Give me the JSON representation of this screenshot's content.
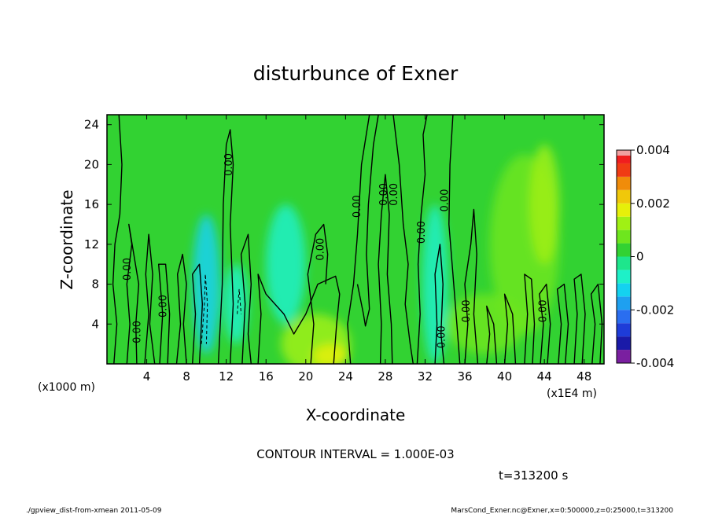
{
  "chart_data": {
    "type": "heatmap",
    "title": "disturbunce of Exner",
    "xlabel": "X-coordinate",
    "ylabel": "Z-coordinate",
    "x_unit_label": "(x1E4 m)",
    "y_unit_label": "(x1000 m)",
    "xlim": [
      0,
      50
    ],
    "ylim": [
      0,
      25
    ],
    "x_ticks": [
      4,
      8,
      12,
      16,
      20,
      24,
      28,
      32,
      36,
      40,
      44,
      48
    ],
    "y_ticks": [
      4,
      8,
      12,
      16,
      20,
      24
    ],
    "colorbar": {
      "range": [
        -0.004,
        0.004
      ],
      "tick_labels": [
        "0.004",
        "0.002",
        "0",
        "-0.002",
        "-0.004"
      ],
      "tick_values": [
        0.004,
        0.002,
        0,
        -0.002,
        -0.004
      ],
      "levels": [
        {
          "lo": -0.004,
          "hi": -0.0035,
          "color": "#7a1fa0"
        },
        {
          "lo": -0.0035,
          "hi": -0.003,
          "color": "#1a1aa8"
        },
        {
          "lo": -0.003,
          "hi": -0.0025,
          "color": "#1e3cd8"
        },
        {
          "lo": -0.0025,
          "hi": -0.002,
          "color": "#2a6ef0"
        },
        {
          "lo": -0.002,
          "hi": -0.0015,
          "color": "#1ea0f0"
        },
        {
          "lo": -0.0015,
          "hi": -0.001,
          "color": "#14d2f0"
        },
        {
          "lo": -0.001,
          "hi": -0.0005,
          "color": "#1ef0c8"
        },
        {
          "lo": -0.0005,
          "hi": 0,
          "color": "#1ee68c"
        },
        {
          "lo": 0,
          "hi": 0.0005,
          "color": "#32d232"
        },
        {
          "lo": 0.0005,
          "hi": 0.001,
          "color": "#6ee61e"
        },
        {
          "lo": 0.001,
          "hi": 0.0015,
          "color": "#a0f014"
        },
        {
          "lo": 0.0015,
          "hi": 0.002,
          "color": "#e6f00a"
        },
        {
          "lo": 0.002,
          "hi": 0.0025,
          "color": "#f0c80a"
        },
        {
          "lo": 0.0025,
          "hi": 0.003,
          "color": "#f08c0a"
        },
        {
          "lo": 0.003,
          "hi": 0.0035,
          "color": "#f03c14"
        },
        {
          "lo": 0.0035,
          "hi": 0.0038,
          "color": "#f01e1e"
        },
        {
          "lo": 0.0038,
          "hi": 0.004,
          "color": "#f0a0a0"
        }
      ]
    },
    "background_color": "#32d232",
    "regions": [
      {
        "x": 10,
        "z": 8,
        "rx": 1.4,
        "rz": 7,
        "value": -0.0012
      },
      {
        "x": 13,
        "z": 6,
        "rx": 1.2,
        "rz": 4,
        "value": -0.001
      },
      {
        "x": 18,
        "z": 10,
        "rx": 2.0,
        "rz": 6,
        "value": -0.0007
      },
      {
        "x": 33,
        "z": 8,
        "rx": 1.3,
        "rz": 8,
        "value": -0.0008
      },
      {
        "x": 42,
        "z": 12,
        "rx": 3.5,
        "rz": 9,
        "value": 0.0007
      },
      {
        "x": 44,
        "z": 16,
        "rx": 1.5,
        "rz": 6,
        "value": 0.0012
      },
      {
        "x": 21,
        "z": 2,
        "rx": 3.5,
        "rz": 3,
        "value": 0.0013
      },
      {
        "x": 22.5,
        "z": 0.8,
        "rx": 1.8,
        "rz": 1.2,
        "value": 0.0018
      },
      {
        "x": 38,
        "z": 4,
        "rx": 4,
        "rz": 3,
        "value": 0.0006
      }
    ],
    "contour_labels": [
      {
        "text": "0.00",
        "x": 2.1,
        "z": 9.5
      },
      {
        "text": "0.00",
        "x": 3.1,
        "z": 3.2
      },
      {
        "text": "0.00",
        "x": 5.7,
        "z": 5.8
      },
      {
        "text": "0.00",
        "x": 12.3,
        "z": 20
      },
      {
        "text": "0.00",
        "x": 21.5,
        "z": 11.5
      },
      {
        "text": "0.00",
        "x": 25.2,
        "z": 15.8
      },
      {
        "text": "0.00",
        "x": 27.9,
        "z": 17
      },
      {
        "text": "0.00",
        "x": 28.9,
        "z": 17
      },
      {
        "text": "0.00",
        "x": 31.7,
        "z": 13.2
      },
      {
        "text": "0.00",
        "x": 34.0,
        "z": 16.4
      },
      {
        "text": "0.00",
        "x": 33.7,
        "z": 2.7
      },
      {
        "text": "0.00",
        "x": 36.2,
        "z": 5.3
      },
      {
        "text": "0.00",
        "x": 43.9,
        "z": 5.3
      }
    ],
    "contours": [
      {
        "points": [
          [
            1.2,
            25
          ],
          [
            1.5,
            20
          ],
          [
            1.3,
            15
          ],
          [
            0.8,
            12
          ],
          [
            0.6,
            8
          ],
          [
            1.0,
            4
          ],
          [
            0.7,
            0
          ]
        ]
      },
      {
        "points": [
          [
            2.0,
            0
          ],
          [
            2.3,
            4
          ],
          [
            2.0,
            8
          ],
          [
            2.5,
            12
          ],
          [
            2.2,
            14
          ],
          [
            2.7,
            11
          ],
          [
            3.2,
            8
          ],
          [
            2.9,
            4
          ],
          [
            3.0,
            0
          ]
        ]
      },
      {
        "points": [
          [
            3.8,
            0
          ],
          [
            4.2,
            5
          ],
          [
            3.9,
            9
          ],
          [
            4.2,
            13
          ],
          [
            4.6,
            9
          ],
          [
            4.3,
            4
          ],
          [
            4.8,
            0
          ]
        ]
      },
      {
        "points": [
          [
            5.3,
            0
          ],
          [
            5.6,
            5
          ],
          [
            5.2,
            10
          ],
          [
            5.9,
            10
          ],
          [
            6.3,
            5
          ],
          [
            6.1,
            0
          ]
        ]
      },
      {
        "points": [
          [
            7.0,
            0
          ],
          [
            7.4,
            4
          ],
          [
            7.1,
            9
          ],
          [
            7.6,
            11
          ],
          [
            8.0,
            8
          ],
          [
            7.7,
            4
          ],
          [
            8.0,
            0
          ]
        ]
      },
      {
        "points": [
          [
            8.6,
            0
          ],
          [
            8.9,
            5
          ],
          [
            8.6,
            9
          ],
          [
            9.3,
            10
          ],
          [
            9.6,
            6
          ],
          [
            9.3,
            0
          ]
        ]
      },
      {
        "points": [
          [
            11.2,
            0
          ],
          [
            11.6,
            8
          ],
          [
            11.7,
            16
          ],
          [
            12.0,
            22
          ],
          [
            12.4,
            23.5
          ],
          [
            12.7,
            20
          ],
          [
            12.4,
            14
          ],
          [
            12.7,
            6
          ],
          [
            12.4,
            0
          ]
        ]
      },
      {
        "points": [
          [
            13.6,
            0
          ],
          [
            13.9,
            6
          ],
          [
            13.5,
            11
          ],
          [
            14.2,
            13
          ],
          [
            14.5,
            8
          ],
          [
            14.2,
            3
          ],
          [
            14.5,
            0
          ]
        ]
      },
      {
        "points": [
          [
            15.2,
            0
          ],
          [
            15.5,
            5
          ],
          [
            15.2,
            9
          ],
          [
            16.0,
            7
          ],
          [
            17.8,
            5
          ],
          [
            18.8,
            3
          ],
          [
            20,
            5
          ],
          [
            21.2,
            8
          ],
          [
            23.0,
            8.8
          ],
          [
            23.4,
            7
          ],
          [
            23.1,
            4
          ],
          [
            22.8,
            0
          ]
        ]
      },
      {
        "points": [
          [
            20.5,
            0
          ],
          [
            20.8,
            4
          ],
          [
            20.2,
            9
          ],
          [
            21.0,
            13
          ],
          [
            21.8,
            14
          ],
          [
            22.2,
            11
          ],
          [
            22.0,
            8
          ]
        ]
      },
      {
        "points": [
          [
            24.5,
            0
          ],
          [
            24.2,
            4
          ],
          [
            24.8,
            8
          ],
          [
            25.2,
            13
          ],
          [
            25.6,
            20
          ],
          [
            26.4,
            25
          ]
        ]
      },
      {
        "points": [
          [
            25.2,
            8
          ],
          [
            25.8,
            5
          ],
          [
            26.0,
            3.8
          ],
          [
            26.4,
            5.5
          ],
          [
            26.1,
            11
          ],
          [
            26.3,
            16
          ],
          [
            26.8,
            22
          ],
          [
            27.3,
            25
          ]
        ]
      },
      {
        "points": [
          [
            27.5,
            0
          ],
          [
            27.6,
            4
          ],
          [
            27.3,
            10
          ],
          [
            27.6,
            15
          ],
          [
            28.0,
            19
          ],
          [
            28.4,
            15
          ],
          [
            28.2,
            9
          ],
          [
            28.6,
            4
          ],
          [
            28.7,
            0
          ]
        ]
      },
      {
        "points": [
          [
            28.8,
            25
          ],
          [
            29.4,
            20
          ],
          [
            29.8,
            14
          ],
          [
            30.3,
            10
          ],
          [
            30.0,
            6
          ],
          [
            30.5,
            2
          ],
          [
            30.8,
            0
          ]
        ]
      },
      {
        "points": [
          [
            31.2,
            0
          ],
          [
            31.5,
            5
          ],
          [
            31.3,
            10
          ],
          [
            31.6,
            15
          ],
          [
            32.0,
            19
          ],
          [
            31.8,
            23
          ],
          [
            32.2,
            25
          ]
        ]
      },
      {
        "points": [
          [
            33.0,
            0
          ],
          [
            33.2,
            4
          ],
          [
            33.0,
            9
          ],
          [
            33.5,
            12
          ],
          [
            33.8,
            8
          ],
          [
            33.6,
            3
          ],
          [
            33.9,
            0
          ]
        ]
      },
      {
        "points": [
          [
            34.8,
            25
          ],
          [
            34.5,
            20
          ],
          [
            34.4,
            14
          ],
          [
            34.8,
            9
          ],
          [
            35.2,
            4
          ],
          [
            35.5,
            0
          ]
        ]
      },
      {
        "points": [
          [
            36.0,
            0
          ],
          [
            36.3,
            4
          ],
          [
            36.0,
            8
          ],
          [
            36.6,
            12
          ],
          [
            36.9,
            15.5
          ],
          [
            37.2,
            11
          ],
          [
            36.9,
            5
          ],
          [
            37.3,
            0
          ]
        ]
      },
      {
        "points": [
          [
            38.2,
            0
          ],
          [
            38.5,
            3
          ],
          [
            38.2,
            5.8
          ],
          [
            38.9,
            4
          ],
          [
            39.2,
            0
          ]
        ]
      },
      {
        "points": [
          [
            40.0,
            0
          ],
          [
            40.3,
            4
          ],
          [
            40.0,
            7
          ],
          [
            40.8,
            5
          ],
          [
            41.1,
            0
          ]
        ]
      },
      {
        "points": [
          [
            42.0,
            0
          ],
          [
            42.3,
            5
          ],
          [
            42.0,
            9
          ],
          [
            42.7,
            8.5
          ],
          [
            43.0,
            4
          ],
          [
            42.8,
            0
          ]
        ]
      },
      {
        "points": [
          [
            43.6,
            0
          ],
          [
            43.9,
            4
          ],
          [
            43.5,
            7
          ],
          [
            44.2,
            8
          ],
          [
            44.6,
            4
          ],
          [
            44.3,
            0
          ]
        ]
      },
      {
        "points": [
          [
            45.4,
            0
          ],
          [
            45.7,
            4
          ],
          [
            45.3,
            7.5
          ],
          [
            46.0,
            8
          ],
          [
            46.4,
            4
          ],
          [
            46.1,
            0
          ]
        ]
      },
      {
        "points": [
          [
            47.0,
            0
          ],
          [
            47.3,
            5
          ],
          [
            47.0,
            8.5
          ],
          [
            47.7,
            9
          ],
          [
            48.1,
            5
          ],
          [
            47.8,
            0
          ]
        ]
      },
      {
        "points": [
          [
            48.8,
            0
          ],
          [
            49.1,
            4
          ],
          [
            48.7,
            7
          ],
          [
            49.4,
            8
          ],
          [
            49.8,
            4
          ],
          [
            49.6,
            0
          ]
        ]
      }
    ],
    "dashed_contours": [
      {
        "points": [
          [
            9.5,
            2
          ],
          [
            9.8,
            6
          ],
          [
            9.9,
            9
          ],
          [
            10.1,
            6
          ],
          [
            10.0,
            2
          ]
        ]
      },
      {
        "points": [
          [
            13.1,
            5
          ],
          [
            13.3,
            7.5
          ],
          [
            13.5,
            5
          ]
        ]
      }
    ]
  },
  "annotations": {
    "contour_interval": "CONTOUR INTERVAL = 1.000E-03",
    "time": "t=313200 s",
    "footer_left": "./gpview_dist-from-xmean  2011-05-09",
    "footer_right": "MarsCond_Exner.nc@Exner,x=0:500000,z=0:25000,t=313200"
  }
}
